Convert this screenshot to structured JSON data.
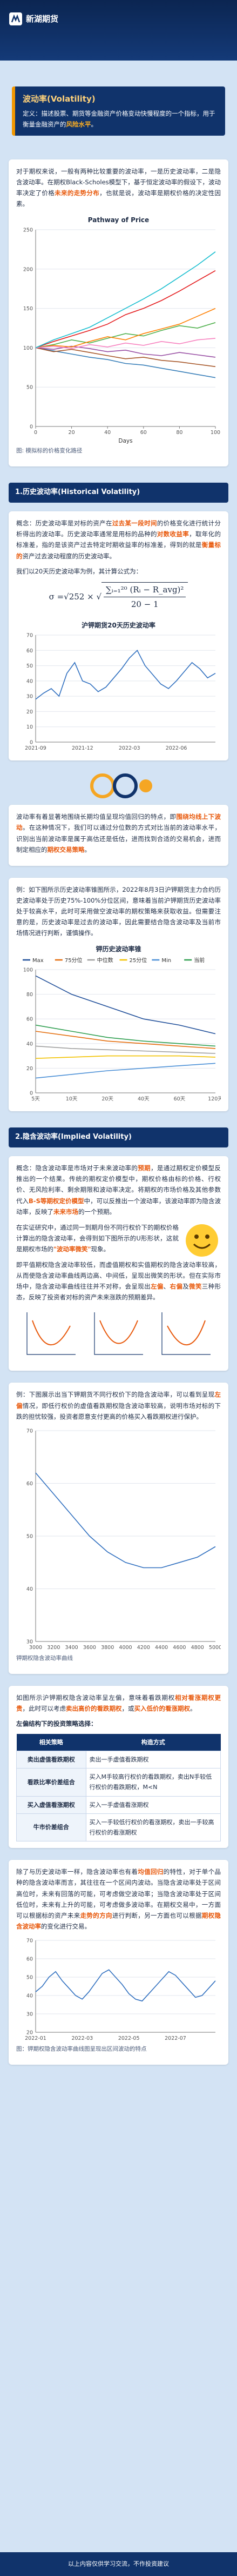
{
  "header": {
    "logo": "新湖期货"
  },
  "intro": {
    "title": "波动率(Volatility)",
    "definition": [
      "定义：描述股票、期货等金融资产价格变动快慢程度的一个指标，用于衡量金融资产的",
      "风险水平",
      "。"
    ]
  },
  "overview": {
    "paragraph": [
      "对于期权来说，一般有两种比较重要的波动率，一是历史波动率，二是隐含波动率。在期权Black-Scholes模型下，基于恒定波动率的假设下，波动率决定了价格",
      "未来的走势分布",
      "，也就是说，波动率是期权价格的决定性因素。"
    ],
    "caption": "图: 模拟标的价格变化路径"
  },
  "hv": {
    "heading": "1.历史波动率(Historical Volatility)",
    "concept": [
      "概念：历史波动率是对标的资产在",
      "过去某一段时间",
      "的价格变化进行统计分析得出的波动率。历史波动率通常是用标的品种的",
      "对数收益率",
      "，取年化的标准差，指的是该资产过去特定时期收益率的标准差，得到的就是",
      "衡量标的",
      "资产过去波动程度的历史波动率。"
    ],
    "formula_intro": "我们以20天历史波动率为例，其计算公式为：",
    "formula": {
      "lhs": "σ = ",
      "factor": "√252 × √",
      "numerator": "∑ᵢ₌₁²⁰ (Rᵢ − R_avg)²",
      "denominator": "20 − 1"
    },
    "mean_reversion": [
      "波动率有着显著地围绕长期均值呈现均值回归的特点，即",
      "围绕均线上下波动",
      "。在这种情况下，我们可以通过分位数的方式对比当前的波动率水平，识别出当前波动率是属于高估还是低估，进而找到合适的交易机会，进而制定相应的",
      "期权交易策略",
      "。"
    ],
    "example": [
      "例：如下图所示历史波动率锥图所示，2022年8月3日沪钾期货主力合约历史波动率处于历史75%-100%分位区间，意味着当前沪钾期货历史波动率处于较高水平，此时可采用做空波动率的期权策略来获取收益。但需要注意的是，历史波动率是过去的波动率，因此需要结合隐含波动率及当前市场情况进行判断，谨慎操作。"
    ]
  },
  "iv": {
    "heading": "2.隐含波动率(Implied Volatility)",
    "concept": [
      "概念：隐含波动率是市场对于未来波动率的",
      "预期",
      "，是通过期权定价模型反推出的一个结果。传统的期权定价模型中，期权价格由标的价格、行权价、无风险利率、剩余期限和波动率决定。将期权的市场价格及其他参数代入",
      "B-S等期权定价模型",
      "中，可以反推出一个波动率，该波动率即为隐含波动率，反映了",
      "未来市场",
      "的一个预期。"
    ],
    "smile_intro": [
      "在实证研究中，通过同一到期月份不同行权价下的期权价格计算出的隐含波动率，会得到如下图所示的U形形状，这就是期权市场的",
      "\"波动率微笑\"",
      "现象。"
    ],
    "smile_detail": [
      "即平值期权隐含波动率较低，而虚值期权和实值期权的隐含波动率较高，从而使隐含波动率曲线两边高、中间低，呈现出微笑的形状。但在实际市场中，隐含波动率曲线往往并不对称，会呈现出",
      "左偏",
      "、",
      "右偏",
      "及",
      "微笑",
      "三种形态，反映了投资者对标的资产未来涨跌的预期差异。"
    ],
    "example": [
      "例：下图展示出当下钾期货不同行权价下的隐含波动率，可以看到呈现",
      "左偏",
      "情况，即低行权价的虚值看跌期权隐含波动率较高，说明市场对标的下跌的担忧较强，投资者愿意支付更高的价格买入看跌期权进行保护。"
    ],
    "caption": "钾期权隐含波动率曲线"
  },
  "strategy": {
    "intro": [
      "如图所示沪钾期权隐含波动率呈左偏，意味着看跌期权",
      "相对看涨期权更贵",
      "，此时可以考虑",
      "卖出高价的看跌期权",
      "，或",
      "买入低价的看涨期权",
      "。"
    ],
    "table_title": "左偏结构下的投资策略选择：",
    "table": {
      "header": [
        "相关策略",
        "构造方式"
      ],
      "rows": [
        [
          "卖出虚值看跌期权",
          "卖出一手虚值看跌期权"
        ],
        [
          "看跌比率价差组合",
          "买入M手较高行权价的看跌期权，卖出N手较低行权价的看跌期权，M<N"
        ],
        [
          "买入虚值看涨期权",
          "买入一手虚值看涨期权"
        ],
        [
          "牛市价差组合",
          "买入一手较低行权价的看涨期权，卖出一手较高行权价的看涨期权"
        ]
      ]
    }
  },
  "mean_iv": {
    "paragraph": [
      "除了与历史波动率一样，隐含波动率也有着",
      "均值回归",
      "的特性，对于单个品种的隐含波动率而言，其往往在一个区间内波动。当隐含波动率处于区间高位时，未来有回落的可能，可考虑做空波动率；当隐含波动率处于区间低位时，未来有上升的可能，可考虑做多波动率。在期权交易中，一方面可以根据标的资产未来",
      "走势的方向",
      "进行判断，另一方面也可以根据",
      "期权隐含波动率",
      "的变化进行交易。"
    ],
    "caption": "图：钾期权隐含波动率曲线图呈现出区间波动的特点"
  },
  "footer": "以上内容仅供学习交流，不作投资建议",
  "chart_data": [
    {
      "type": "line",
      "title": "Pathway of Price",
      "x_label": "Days",
      "x": [
        0,
        10,
        20,
        30,
        40,
        50,
        60,
        70,
        80,
        90,
        100
      ],
      "xlim": [
        0,
        100
      ],
      "xticks": [
        0,
        20,
        40,
        60,
        80,
        100
      ],
      "ylim": [
        0,
        250
      ],
      "yticks": [
        0,
        50,
        100,
        150,
        200,
        250
      ],
      "grid": true,
      "series": [
        {
          "color": "#e41a1c",
          "values": [
            100,
            108,
            115,
            122,
            130,
            142,
            150,
            160,
            172,
            185,
            198
          ]
        },
        {
          "color": "#377eb8",
          "values": [
            100,
            96,
            92,
            88,
            85,
            80,
            78,
            74,
            70,
            66,
            62
          ]
        },
        {
          "color": "#4daf4a",
          "values": [
            100,
            104,
            110,
            106,
            112,
            118,
            115,
            122,
            128,
            125,
            132
          ]
        },
        {
          "color": "#984ea3",
          "values": [
            100,
            98,
            102,
            99,
            95,
            97,
            92,
            90,
            94,
            91,
            88
          ]
        },
        {
          "color": "#ff7f00",
          "values": [
            100,
            103,
            101,
            108,
            114,
            110,
            118,
            124,
            130,
            140,
            150
          ]
        },
        {
          "color": "#a65628",
          "values": [
            100,
            95,
            98,
            94,
            90,
            86,
            88,
            84,
            82,
            79,
            76
          ]
        },
        {
          "color": "#f781bf",
          "values": [
            100,
            102,
            99,
            104,
            101,
            106,
            103,
            108,
            105,
            110,
            112
          ]
        },
        {
          "color": "#17becf",
          "values": [
            100,
            110,
            118,
            126,
            138,
            150,
            162,
            175,
            190,
            205,
            222
          ]
        }
      ]
    },
    {
      "type": "line",
      "title": "沪钾期货20天历史波动率",
      "categories": [
        "2021-09",
        null,
        null,
        null,
        null,
        null,
        "2021-12",
        null,
        null,
        null,
        null,
        null,
        "2022-03",
        null,
        null,
        null,
        null,
        null,
        "2022-06",
        null,
        null,
        null,
        null,
        null
      ],
      "ylim": [
        0,
        70
      ],
      "yticks": [
        0,
        10,
        20,
        30,
        40,
        50,
        60,
        70
      ],
      "grid": true,
      "series": [
        {
          "color": "#2f6fbf",
          "values": [
            28,
            32,
            35,
            30,
            45,
            52,
            40,
            38,
            33,
            36,
            42,
            48,
            55,
            60,
            50,
            44,
            38,
            35,
            40,
            46,
            52,
            48,
            42,
            45
          ]
        }
      ]
    },
    {
      "type": "line",
      "title": "钾历史波动率锥",
      "categories": [
        "5天",
        "10天",
        "20天",
        "40天",
        "60天",
        "120天"
      ],
      "ylim": [
        0,
        100
      ],
      "yticks": [
        0,
        20,
        40,
        60,
        80,
        100
      ],
      "grid": true,
      "series": [
        {
          "name": "Max",
          "color": "#1f4e99",
          "values": [
            95,
            80,
            70,
            60,
            55,
            48
          ]
        },
        {
          "name": "75分位",
          "color": "#e46c0a",
          "values": [
            50,
            46,
            42,
            40,
            38,
            36
          ]
        },
        {
          "name": "中位数",
          "color": "#9e9e9e",
          "values": [
            38,
            36,
            35,
            34,
            33,
            32
          ]
        },
        {
          "name": "25分位",
          "color": "#f2c200",
          "values": [
            28,
            29,
            30,
            30,
            30,
            29
          ]
        },
        {
          "name": "Min",
          "color": "#4a8fd6",
          "values": [
            12,
            15,
            18,
            20,
            22,
            24
          ]
        },
        {
          "name": "当前",
          "color": "#2e9e4f",
          "values": [
            55,
            50,
            45,
            42,
            40,
            38
          ]
        }
      ]
    },
    {
      "type": "line",
      "categories": [
        "3000",
        "3200",
        "3400",
        "3600",
        "3800",
        "4000",
        "4200",
        "4400",
        "4600",
        "4800",
        "5000"
      ],
      "ylim": [
        30,
        70
      ],
      "yticks": [
        30,
        40,
        50,
        60,
        70
      ],
      "grid": true,
      "series": [
        {
          "color": "#2f6fbf",
          "values": [
            62,
            58,
            54,
            50,
            47,
            45,
            44,
            44,
            45,
            46,
            48
          ]
        }
      ]
    },
    {
      "type": "line",
      "categories": [
        "2022-01",
        null,
        null,
        null,
        null,
        null,
        null,
        "2022-03",
        null,
        null,
        null,
        null,
        null,
        null,
        "2022-05",
        null,
        null,
        null,
        null,
        null,
        null,
        "2022-07",
        null,
        null,
        null,
        null,
        null,
        null
      ],
      "ylim": [
        20,
        70
      ],
      "yticks": [
        20,
        30,
        40,
        50,
        60,
        70
      ],
      "grid": true,
      "series": [
        {
          "color": "#2f6fbf",
          "values": [
            42,
            45,
            50,
            53,
            48,
            44,
            40,
            38,
            42,
            47,
            52,
            54,
            50,
            46,
            41,
            38,
            37,
            41,
            45,
            49,
            53,
            51,
            47,
            43,
            39,
            40,
            44,
            48
          ]
        }
      ]
    }
  ]
}
